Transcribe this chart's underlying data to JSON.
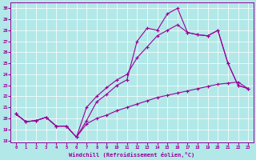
{
  "xlabel": "Windchill (Refroidissement éolien,°C)",
  "bg_color": "#b2e8e8",
  "line_color": "#990099",
  "grid_color": "#ffffff",
  "xlim": [
    -0.5,
    23.5
  ],
  "ylim": [
    17.8,
    30.5
  ],
  "xticks": [
    0,
    1,
    2,
    3,
    4,
    5,
    6,
    7,
    8,
    9,
    10,
    11,
    12,
    13,
    14,
    15,
    16,
    17,
    18,
    19,
    20,
    21,
    22,
    23
  ],
  "yticks": [
    18,
    19,
    20,
    21,
    22,
    23,
    24,
    25,
    26,
    27,
    28,
    29,
    30
  ],
  "line1_x": [
    0,
    1,
    2,
    3,
    4,
    5,
    6,
    7,
    8,
    9,
    10,
    11,
    12,
    13,
    14,
    15,
    16,
    17,
    18,
    19,
    20,
    21,
    22,
    23
  ],
  "line1_y": [
    20.4,
    19.7,
    19.8,
    20.1,
    19.3,
    19.3,
    18.3,
    19.8,
    21.5,
    22.2,
    23.0,
    23.5,
    27.0,
    28.2,
    28.0,
    29.5,
    30.0,
    27.8,
    27.6,
    27.5,
    28.0,
    25.0,
    23.0,
    22.7
  ],
  "line2_x": [
    0,
    1,
    2,
    3,
    4,
    5,
    6,
    7,
    8,
    9,
    10,
    11,
    12,
    13,
    14,
    15,
    16,
    17,
    18,
    19,
    20,
    21,
    22,
    23
  ],
  "line2_y": [
    20.4,
    19.7,
    19.8,
    20.1,
    19.3,
    19.3,
    18.3,
    21.0,
    22.0,
    22.8,
    23.5,
    24.0,
    25.5,
    26.5,
    27.5,
    28.0,
    28.5,
    27.8,
    27.6,
    27.5,
    28.0,
    25.0,
    23.0,
    22.7
  ],
  "line3_x": [
    0,
    1,
    2,
    3,
    4,
    5,
    6,
    7,
    8,
    9,
    10,
    11,
    12,
    13,
    14,
    15,
    16,
    17,
    18,
    19,
    20,
    21,
    22,
    23
  ],
  "line3_y": [
    20.4,
    19.7,
    19.8,
    20.1,
    19.3,
    19.3,
    18.3,
    19.5,
    20.0,
    20.3,
    20.7,
    21.0,
    21.3,
    21.6,
    21.9,
    22.1,
    22.3,
    22.5,
    22.7,
    22.9,
    23.1,
    23.2,
    23.3,
    22.7
  ],
  "tick_fontsize": 4.0,
  "xlabel_fontsize": 5.0,
  "marker_size": 3.5,
  "linewidth": 0.8
}
